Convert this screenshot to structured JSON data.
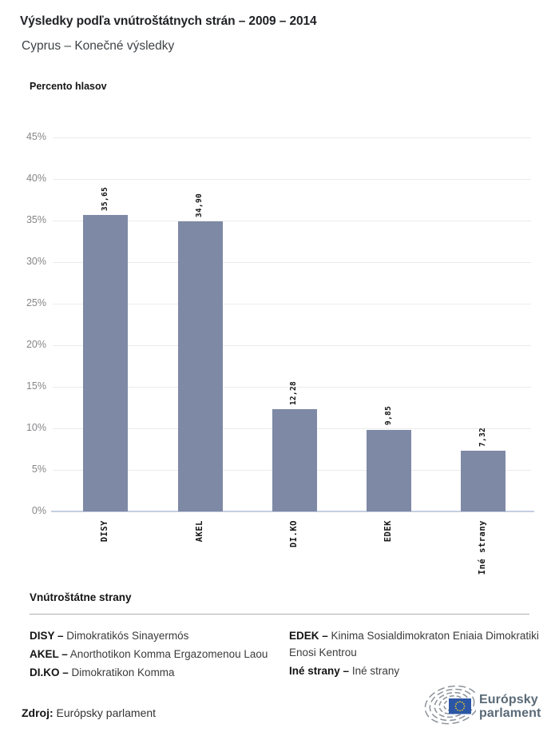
{
  "header": {
    "title": "Výsledky podľa vnútroštátnych strán – 2009 – 2014",
    "subtitle": "Cyprus – Konečné výsledky"
  },
  "chart_data": {
    "type": "bar",
    "title": "Výsledky podľa vnútroštátnych strán – 2009 – 2014",
    "subtitle": "Cyprus – Konečné výsledky",
    "xlabel": "",
    "ylabel": "Percento hlasov",
    "categories": [
      "DISY",
      "AKEL",
      "DI.KO",
      "EDEK",
      "Iné strany"
    ],
    "values": [
      35.65,
      34.9,
      12.28,
      9.85,
      7.32
    ],
    "value_labels": [
      "35,65",
      "34,90",
      "12,28",
      "9,85",
      "7,32"
    ],
    "ylim": [
      0,
      45
    ],
    "ytick_step": 5,
    "ytick_labels": [
      "0%",
      "5%",
      "10%",
      "15%",
      "20%",
      "25%",
      "30%",
      "35%",
      "40%",
      "45%"
    ],
    "grid": true,
    "legend_position": "none",
    "bar_color": "#7e89a5",
    "gridline_color": "#ebebeb",
    "baseline_color": "#c5cfe2"
  },
  "legend": {
    "heading": "Vnútroštátne strany",
    "items": [
      {
        "label": "DISY –",
        "text": "Dimokratikós Sinayermós"
      },
      {
        "label": "AKEL –",
        "text": "Anorthotikon Komma Ergazomenou Laou"
      },
      {
        "label": "DI.KO –",
        "text": "Dimokratikon Komma"
      },
      {
        "label": "EDEK –",
        "text": "Kinima Sosialdimokraton Eniaia Dimokratiki Enosi Kentrou"
      },
      {
        "label": "Iné strany –",
        "text": "Iné strany"
      }
    ]
  },
  "footer": {
    "source_label": "Zdroj:",
    "source_text": "Európsky parlament",
    "logo_line1": "Európsky",
    "logo_line2": "parlament",
    "logo_colors": {
      "hemicycle": "#8c939b",
      "flag_blue": "#2b56a5",
      "star_yellow": "#f7d117",
      "wordmark": "#5a6a77"
    }
  }
}
